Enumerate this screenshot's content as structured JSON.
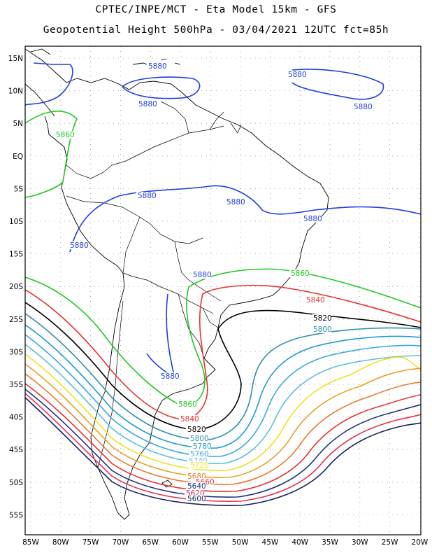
{
  "title_line1": "CPTEC/INPE/MCT  -  Eta Model 15km - GFS",
  "title_line2": "Geopotential Height 500hPa - 03/04/2021 12UTC fct=85h",
  "lat_labels": [
    "15N",
    "10N",
    "5N",
    "EQ",
    "5S",
    "10S",
    "15S",
    "20S",
    "25S",
    "30S",
    "35S",
    "40S",
    "45S",
    "50S",
    "55S"
  ],
  "lon_labels": [
    "85W",
    "80W",
    "75W",
    "70W",
    "65W",
    "60W",
    "55W",
    "50W",
    "45W",
    "40W",
    "35W",
    "30W",
    "25W",
    "20W"
  ],
  "contours": [
    {
      "value": "5880",
      "color": "#1f3fdf"
    },
    {
      "value": "5860",
      "color": "#1ec81e"
    },
    {
      "value": "5840",
      "color": "#e83030"
    },
    {
      "value": "5820",
      "color": "#000000"
    },
    {
      "value": "5800",
      "color": "#2f8fa8"
    },
    {
      "value": "5780",
      "color": "#1e9ad0"
    },
    {
      "value": "5760",
      "color": "#3aa6e0"
    },
    {
      "value": "5740",
      "color": "#58c0d8"
    },
    {
      "value": "5720",
      "color": "#f0e020"
    },
    {
      "value": "5700",
      "color": "#e8a020"
    },
    {
      "value": "5680",
      "color": "#e87830"
    },
    {
      "value": "5660",
      "color": "#e83030"
    },
    {
      "value": "5640",
      "color": "#1a3080"
    },
    {
      "value": "5620",
      "color": "#e03050"
    },
    {
      "value": "5600",
      "color": "#142060"
    }
  ],
  "labels": [
    {
      "text": "5880",
      "color": "#1f3fdf"
    },
    {
      "text": "5880",
      "color": "#1f3fdf"
    },
    {
      "text": "5880",
      "color": "#1f3fdf"
    },
    {
      "text": "5880",
      "color": "#1f3fdf"
    },
    {
      "text": "5880",
      "color": "#1f3fdf"
    },
    {
      "text": "5880",
      "color": "#1f3fdf"
    },
    {
      "text": "5880",
      "color": "#1f3fdf"
    },
    {
      "text": "5880",
      "color": "#1f3fdf"
    },
    {
      "text": "5880",
      "color": "#1f3fdf"
    },
    {
      "text": "5880",
      "color": "#1f3fdf"
    },
    {
      "text": "5860",
      "color": "#1ec81e"
    },
    {
      "text": "5860",
      "color": "#1ec81e"
    },
    {
      "text": "5860",
      "color": "#1ec81e"
    },
    {
      "text": "5840",
      "color": "#e83030"
    },
    {
      "text": "5840",
      "color": "#e83030"
    },
    {
      "text": "5820",
      "color": "#000000"
    },
    {
      "text": "5820",
      "color": "#000000"
    },
    {
      "text": "5800",
      "color": "#2f8fa8"
    },
    {
      "text": "5800",
      "color": "#2f8fa8"
    },
    {
      "text": "5780",
      "color": "#1e9ad0"
    },
    {
      "text": "5760",
      "color": "#3aa6e0"
    },
    {
      "text": "5740",
      "color": "#58c0d8"
    },
    {
      "text": "5720",
      "color": "#f0e020"
    },
    {
      "text": "5680",
      "color": "#e87830"
    },
    {
      "text": "5660",
      "color": "#e83030"
    },
    {
      "text": "5640",
      "color": "#1a3080"
    },
    {
      "text": "5620",
      "color": "#e03050"
    },
    {
      "text": "5600",
      "color": "#142060"
    }
  ]
}
